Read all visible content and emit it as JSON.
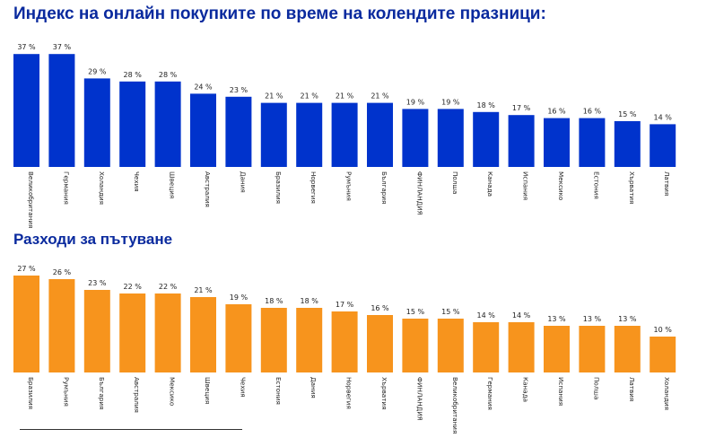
{
  "colors": {
    "title": "#0a2a9e",
    "bar_blue": "#0033cc",
    "bar_orange": "#f7941d"
  },
  "chart_data": [
    {
      "type": "bar",
      "title": "Индекс на онлайн покупките по време на колендите празници:",
      "color": "#0033cc",
      "unit": "%",
      "ylim": [
        0,
        40
      ],
      "categories": [
        "Великобритания",
        "Германия",
        "Холандия",
        "Чехия",
        "Швеция",
        "Австралия",
        "Дания",
        "Бразилия",
        "Норвегия",
        "Румъния",
        "България",
        "ФИНЛАНДИЯ",
        "Полша",
        "Канада",
        "Испания",
        "Мексико",
        "Естония",
        "Хърватия",
        "Латвия"
      ],
      "values": [
        37,
        37,
        29,
        28,
        28,
        24,
        23,
        21,
        21,
        21,
        21,
        19,
        19,
        18,
        17,
        16,
        16,
        15,
        14
      ],
      "value_labels": [
        "37 %",
        "37 %",
        "29 %",
        "28 %",
        "28 %",
        "24 %",
        "23 %",
        "21 %",
        "21 %",
        "21 %",
        "21 %",
        "19 %",
        "19 %",
        "18 %",
        "17 %",
        "16 %",
        "16 %",
        "15 %",
        "14 %"
      ]
    },
    {
      "type": "bar",
      "title": "Разходи за пътуване",
      "color": "#f7941d",
      "unit": "%",
      "ylim": [
        0,
        30
      ],
      "categories": [
        "Бразилия",
        "Румъния",
        "България",
        "Австралия",
        "Мексико",
        "Швеция",
        "Чехия",
        "Естония",
        "Дания",
        "Норвегия",
        "Хърватия",
        "ФИНЛАНДИЯ",
        "Великобритания",
        "Германия",
        "Канада",
        "Испания",
        "Полша",
        "Латвия",
        "Холандия"
      ],
      "values": [
        27,
        26,
        23,
        22,
        22,
        21,
        19,
        18,
        18,
        17,
        16,
        15,
        15,
        14,
        14,
        13,
        13,
        13,
        10
      ],
      "value_labels": [
        "27 %",
        "26 %",
        "23 %",
        "22 %",
        "22 %",
        "21 %",
        "19 %",
        "18 %",
        "18 %",
        "17 %",
        "16 %",
        "15 %",
        "15 %",
        "14 %",
        "14 %",
        "13 %",
        "13 %",
        "13 %",
        "10 %"
      ]
    }
  ]
}
